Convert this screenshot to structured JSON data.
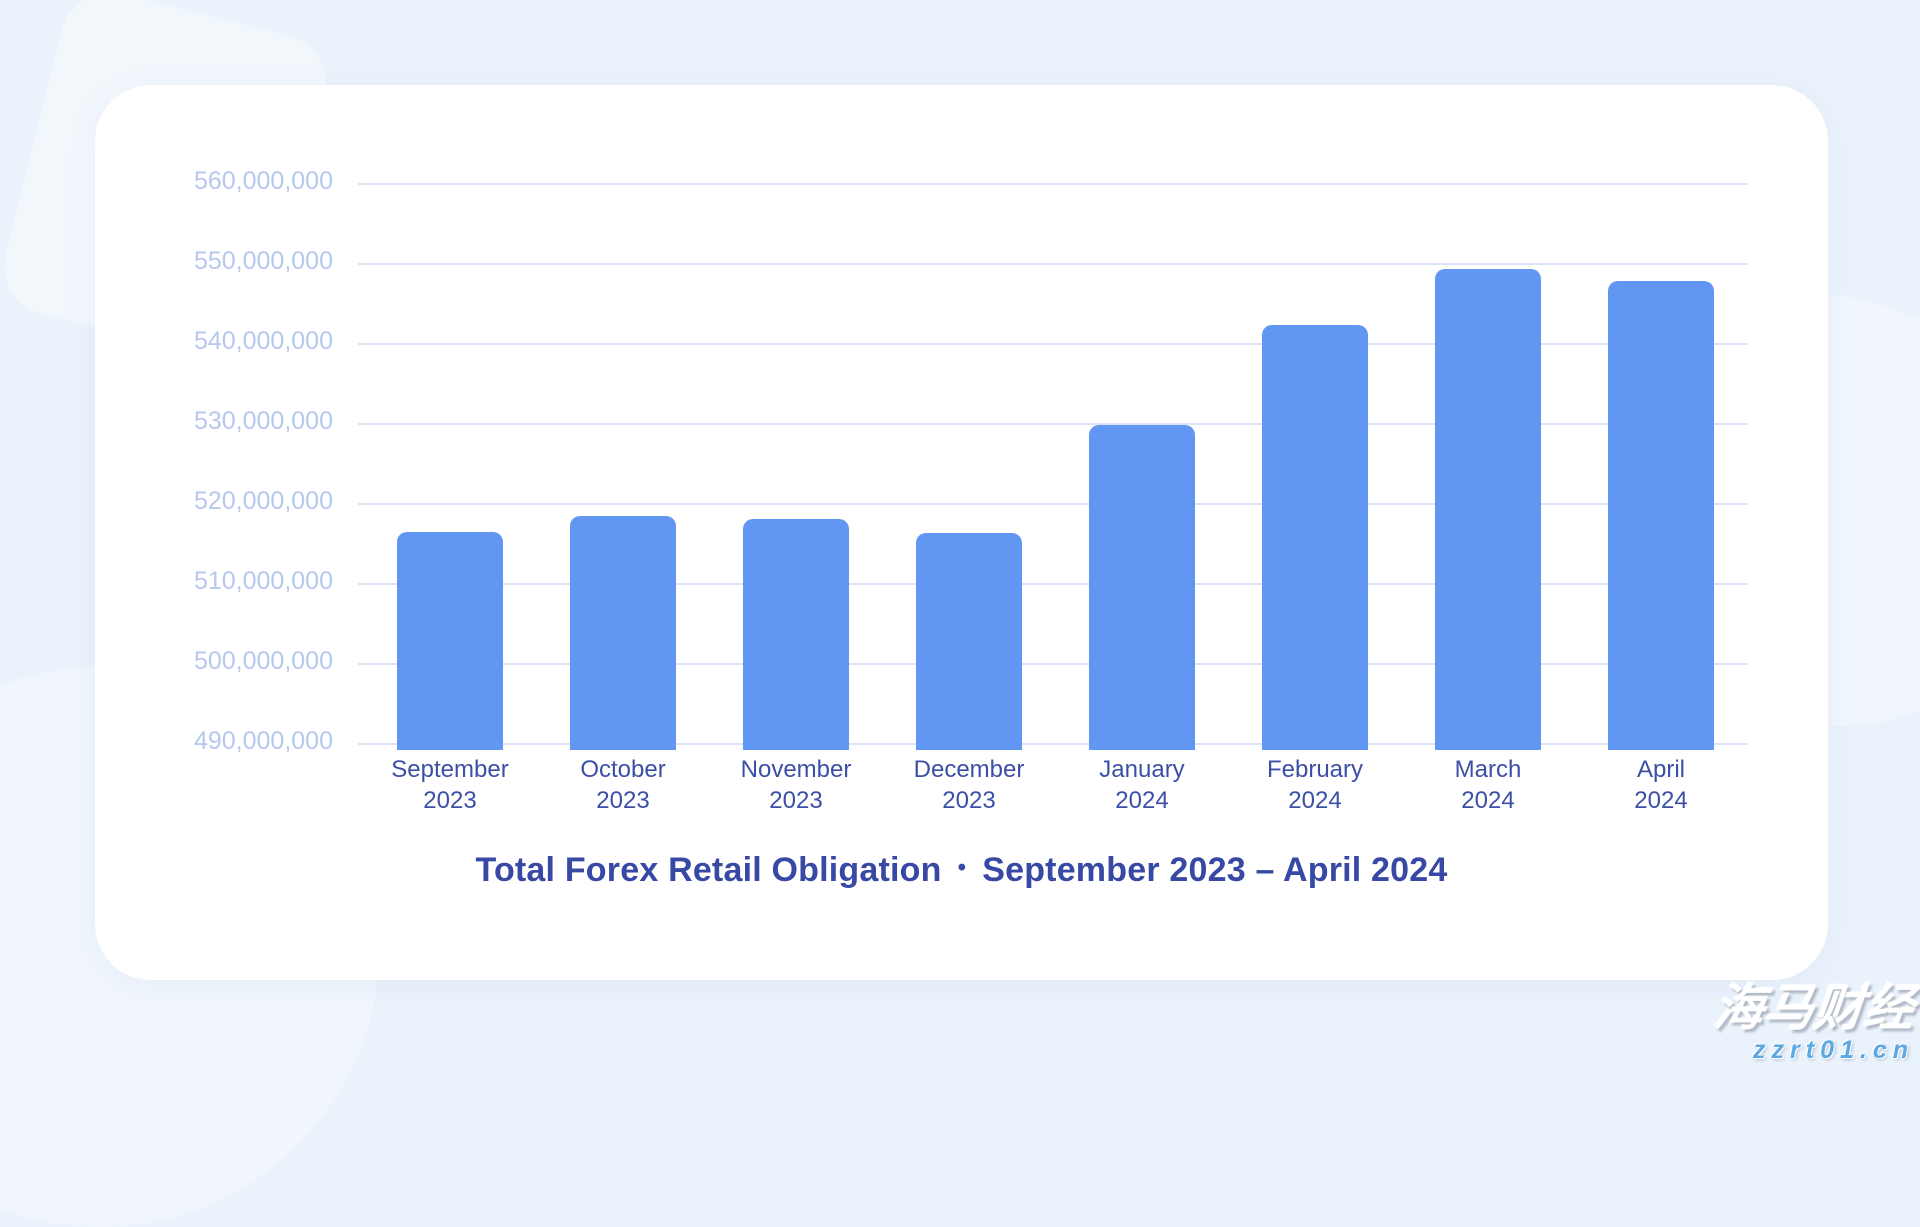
{
  "colors": {
    "page_background": "#eaf2fb",
    "card_background": "#ffffff",
    "bar": "#6196f3",
    "gridline": "#dbe4f4",
    "y_axis_label": "#b6c8ee",
    "x_axis_label": "#3c4fa7",
    "title": "#3848a5",
    "watermark_brand_color": "#ffffff",
    "watermark_url_color": "#5ba8e5"
  },
  "chart_data": {
    "type": "bar",
    "title": "Total Forex Retail Obligation",
    "separator": "•",
    "subtitle": "September 2023 – April 2024",
    "categories": [
      "September 2023",
      "October 2023",
      "November 2023",
      "December 2023",
      "January 2024",
      "February 2024",
      "March 2024",
      "April 2024"
    ],
    "values": [
      516400000,
      518400000,
      518000000,
      516200000,
      529700000,
      542200000,
      549200000,
      547700000
    ],
    "y_ticks": [
      560000000,
      550000000,
      540000000,
      530000000,
      520000000,
      510000000,
      500000000,
      490000000
    ],
    "xlabel": "",
    "ylabel": "",
    "ylim": [
      490000000,
      560000000
    ],
    "grid": "horizontal",
    "legend": "none"
  },
  "watermark": {
    "brand": "海马财经",
    "url": "zzrt01.cn"
  }
}
